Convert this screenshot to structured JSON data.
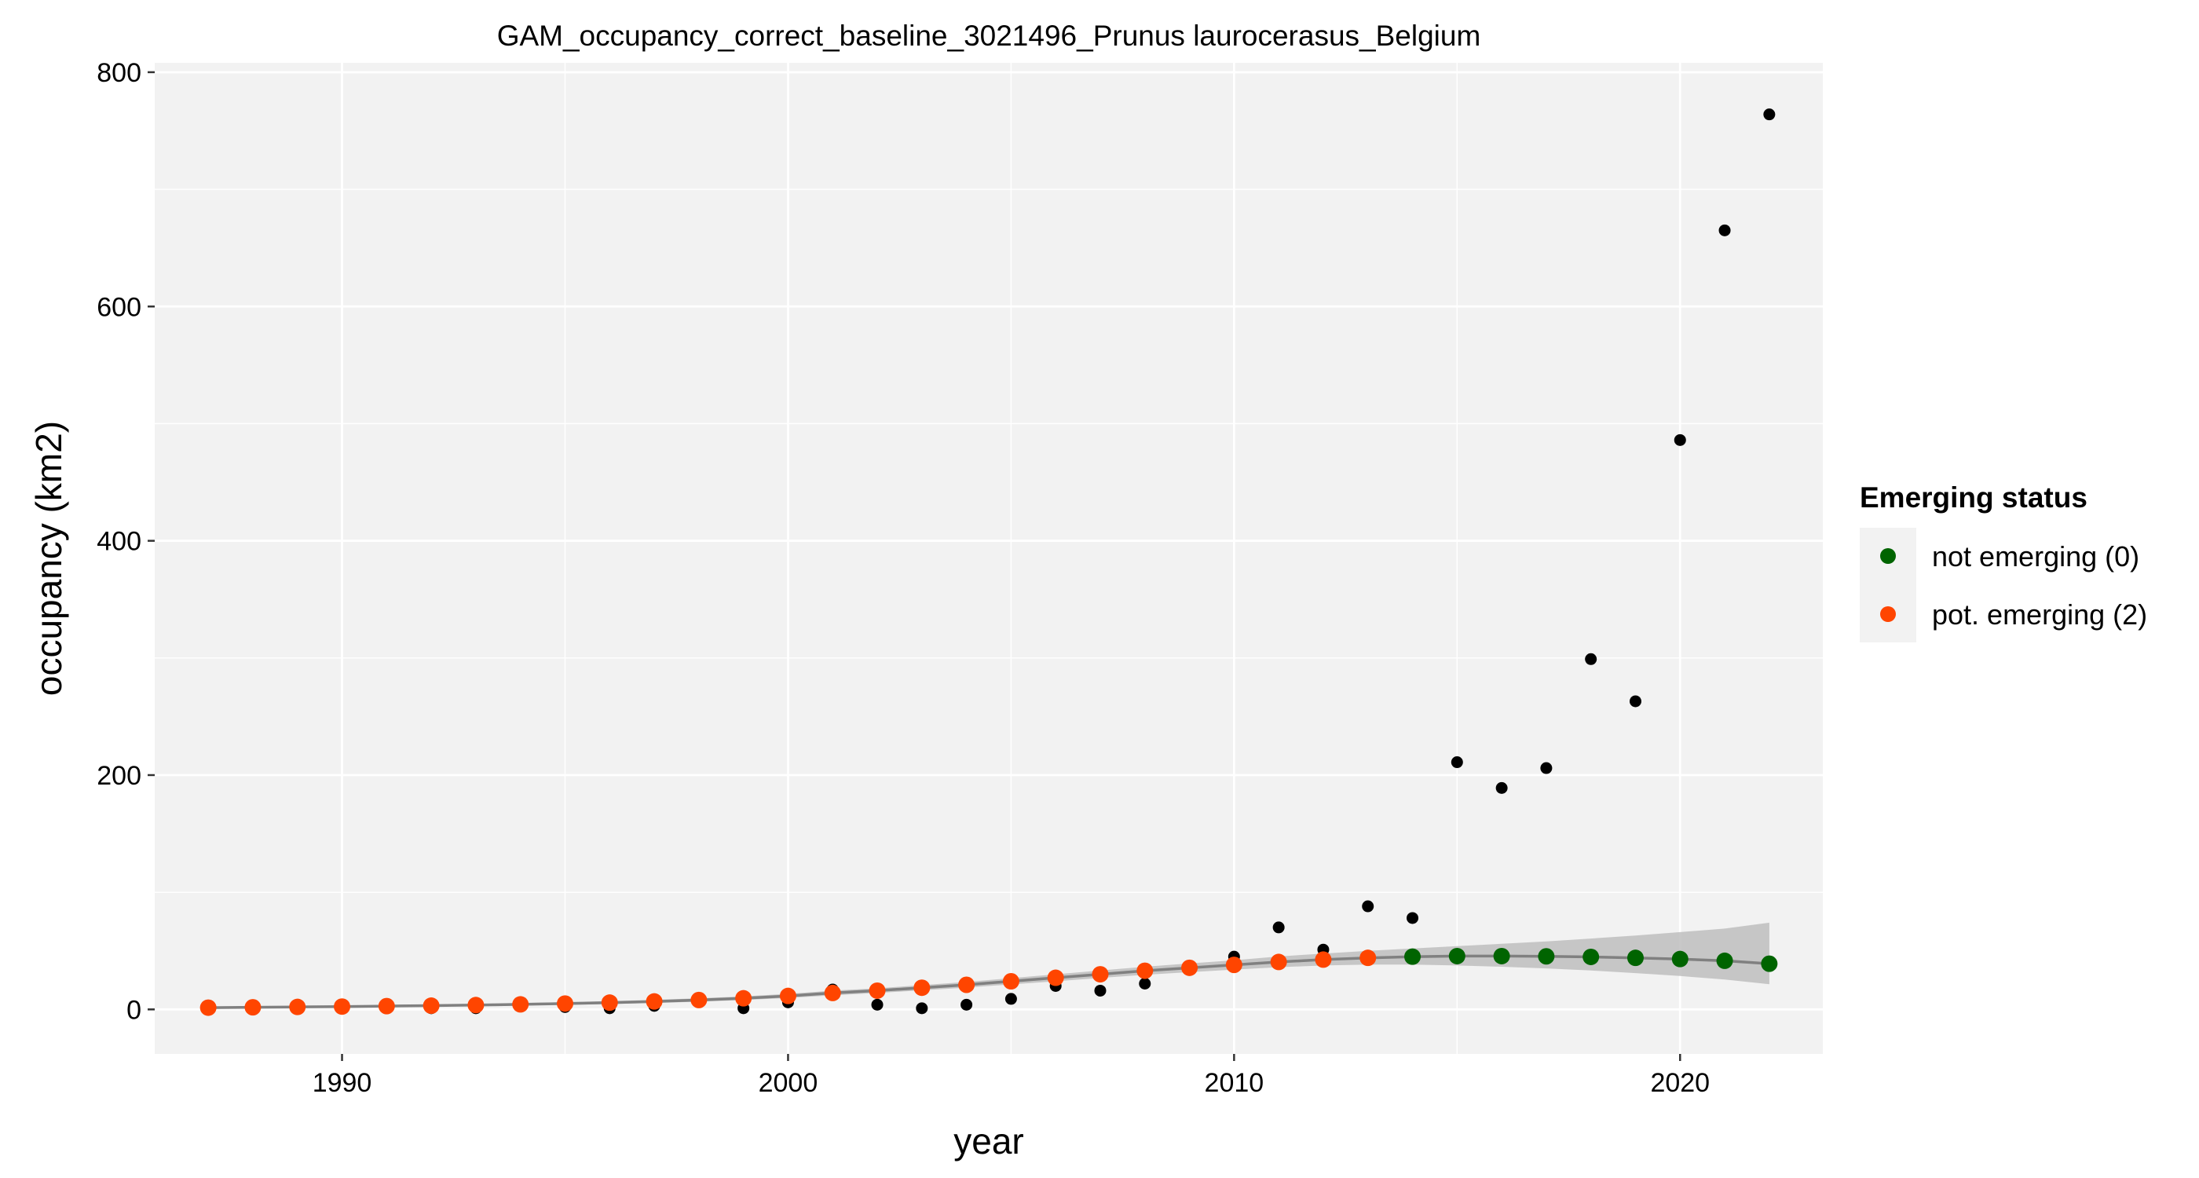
{
  "chart_data": {
    "type": "scatter",
    "title": "GAM_occupancy_correct_baseline_3021496_Prunus laurocerasus_Belgium",
    "xlabel": "year",
    "ylabel": "occupancy (km2)",
    "xlim": [
      1985.8,
      2023.2
    ],
    "ylim": [
      -38,
      808
    ],
    "xticks": [
      1990,
      2000,
      2010,
      2020
    ],
    "yticks": [
      0,
      200,
      400,
      600,
      800
    ],
    "grid": true,
    "legend_position": "right",
    "legend": {
      "title": "Emerging status",
      "entries": [
        {
          "label": "not emerging (0)",
          "color": "#006400"
        },
        {
          "label": "pot. emerging (2)",
          "color": "#FF4500"
        }
      ]
    },
    "colors": {
      "panel_background": "#F2F2F2",
      "grid": "#FFFFFF",
      "observed": "#000000",
      "fit_line": "#808080",
      "ribbon": "#BEBEBE",
      "not_emerging": "#006400",
      "pot_emerging": "#FF4500"
    },
    "series": [
      {
        "role": "observed",
        "x": [
          1987,
          1988,
          1989,
          1990,
          1991,
          1992,
          1993,
          1994,
          1995,
          1996,
          1997,
          1998,
          1999,
          2000,
          2001,
          2002,
          2003,
          2004,
          2005,
          2006,
          2007,
          2008,
          2009,
          2010,
          2011,
          2012,
          2013,
          2014,
          2015,
          2016,
          2017,
          2018,
          2019,
          2020,
          2021,
          2022
        ],
        "y": [
          1,
          1,
          1,
          1,
          2,
          1,
          1,
          3,
          2,
          1,
          3,
          8,
          1,
          6,
          17,
          4,
          1,
          4,
          9,
          20,
          16,
          22,
          35,
          45,
          70,
          51,
          88,
          78,
          211,
          189,
          206,
          299,
          263,
          486,
          665,
          764
        ]
      },
      {
        "role": "gam_fit",
        "x": [
          1987,
          1988,
          1989,
          1990,
          1991,
          1992,
          1993,
          1994,
          1995,
          1996,
          1997,
          1998,
          1999,
          2000,
          2001,
          2002,
          2003,
          2004,
          2005,
          2006,
          2007,
          2008,
          2009,
          2010,
          2011,
          2012,
          2013,
          2014,
          2015,
          2016,
          2017,
          2018,
          2019,
          2020,
          2021,
          2022
        ],
        "y": [
          1.5,
          1.8,
          2.1,
          2.4,
          2.8,
          3.2,
          3.7,
          4.3,
          5.0,
          5.8,
          6.8,
          8.0,
          9.5,
          11.5,
          14,
          16,
          18.5,
          21,
          24,
          27,
          30,
          33,
          35.5,
          38,
          40.5,
          42.5,
          44,
          45,
          45.5,
          45.5,
          45.3,
          44.8,
          44,
          43,
          41.5,
          39
        ],
        "lower": [
          0.8,
          1.1,
          1.4,
          1.7,
          2.0,
          2.4,
          2.8,
          3.3,
          3.9,
          4.6,
          5.5,
          6.6,
          8.0,
          9.8,
          12,
          14,
          16.3,
          18.6,
          21.3,
          24,
          26.8,
          29.6,
          31.8,
          34,
          36,
          37.5,
          38.2,
          38.2,
          37.5,
          36.4,
          35,
          33.2,
          31,
          28.5,
          25.5,
          21.5
        ],
        "upper": [
          2.3,
          2.6,
          2.9,
          3.2,
          3.7,
          4.1,
          4.7,
          5.4,
          6.2,
          7.1,
          8.2,
          9.5,
          11.1,
          13.3,
          16,
          18,
          20.7,
          23.4,
          26.7,
          30,
          33.2,
          36.4,
          39.2,
          42,
          45.2,
          47.7,
          50,
          52,
          54,
          56,
          58,
          60.5,
          63,
          66,
          69,
          74
        ]
      },
      {
        "name": "pot. emerging (2)",
        "x": [
          1987,
          1988,
          1989,
          1990,
          1991,
          1992,
          1993,
          1994,
          1995,
          1996,
          1997,
          1998,
          1999,
          2000,
          2001,
          2002,
          2003,
          2004,
          2005,
          2006,
          2007,
          2008,
          2009,
          2010,
          2011,
          2012,
          2013
        ],
        "y": [
          1.5,
          1.8,
          2.1,
          2.4,
          2.8,
          3.2,
          3.7,
          4.3,
          5.0,
          5.8,
          6.8,
          8.0,
          9.5,
          11.5,
          14,
          16,
          18.5,
          21,
          24,
          27,
          30,
          33,
          35.5,
          38,
          40.5,
          42.5,
          44
        ]
      },
      {
        "name": "not emerging (0)",
        "x": [
          2014,
          2015,
          2016,
          2017,
          2018,
          2019,
          2020,
          2021,
          2022
        ],
        "y": [
          45,
          45.5,
          45.5,
          45.3,
          44.8,
          44,
          43,
          41.5,
          39
        ]
      }
    ]
  }
}
